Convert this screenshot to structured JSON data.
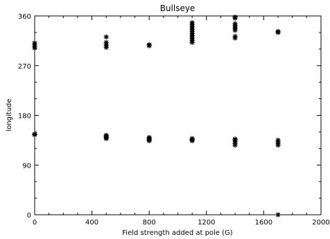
{
  "chart_data": {
    "type": "scatter",
    "title": "Bullseye",
    "xlabel": "Field strength added at pole (G)",
    "ylabel": "longitude",
    "xlim": [
      0,
      2000
    ],
    "ylim": [
      0,
      360
    ],
    "xticks": [
      0,
      400,
      800,
      1200,
      1600,
      2000
    ],
    "yticks": [
      0,
      90,
      180,
      270,
      360
    ],
    "marker": "asterisk",
    "grid": false,
    "legend": "none",
    "color": "#000000",
    "points": [
      {
        "x": 0,
        "y": 302
      },
      {
        "x": 0,
        "y": 305
      },
      {
        "x": 0,
        "y": 308
      },
      {
        "x": 0,
        "y": 311
      },
      {
        "x": 0,
        "y": 145
      },
      {
        "x": 0,
        "y": 146
      },
      {
        "x": 500,
        "y": 303
      },
      {
        "x": 500,
        "y": 306
      },
      {
        "x": 500,
        "y": 309
      },
      {
        "x": 500,
        "y": 312
      },
      {
        "x": 500,
        "y": 322
      },
      {
        "x": 500,
        "y": 138
      },
      {
        "x": 500,
        "y": 140
      },
      {
        "x": 500,
        "y": 142
      },
      {
        "x": 500,
        "y": 144
      },
      {
        "x": 800,
        "y": 306
      },
      {
        "x": 800,
        "y": 308
      },
      {
        "x": 800,
        "y": 134
      },
      {
        "x": 800,
        "y": 136
      },
      {
        "x": 800,
        "y": 138
      },
      {
        "x": 800,
        "y": 140
      },
      {
        "x": 1100,
        "y": 312
      },
      {
        "x": 1100,
        "y": 316
      },
      {
        "x": 1100,
        "y": 320
      },
      {
        "x": 1100,
        "y": 324
      },
      {
        "x": 1100,
        "y": 328
      },
      {
        "x": 1100,
        "y": 332
      },
      {
        "x": 1100,
        "y": 336
      },
      {
        "x": 1100,
        "y": 340
      },
      {
        "x": 1100,
        "y": 344
      },
      {
        "x": 1100,
        "y": 348
      },
      {
        "x": 1100,
        "y": 134
      },
      {
        "x": 1100,
        "y": 136
      },
      {
        "x": 1100,
        "y": 138
      },
      {
        "x": 1400,
        "y": 320
      },
      {
        "x": 1400,
        "y": 323
      },
      {
        "x": 1400,
        "y": 334
      },
      {
        "x": 1400,
        "y": 338
      },
      {
        "x": 1400,
        "y": 342
      },
      {
        "x": 1400,
        "y": 346
      },
      {
        "x": 1400,
        "y": 356
      },
      {
        "x": 1400,
        "y": 358
      },
      {
        "x": 1400,
        "y": 126
      },
      {
        "x": 1400,
        "y": 129
      },
      {
        "x": 1400,
        "y": 132
      },
      {
        "x": 1400,
        "y": 135
      },
      {
        "x": 1400,
        "y": 137
      },
      {
        "x": 1700,
        "y": 330
      },
      {
        "x": 1700,
        "y": 332
      },
      {
        "x": 1700,
        "y": 126
      },
      {
        "x": 1700,
        "y": 129
      },
      {
        "x": 1700,
        "y": 132
      },
      {
        "x": 1700,
        "y": 135
      },
      {
        "x": 1700,
        "y": 0
      }
    ]
  }
}
